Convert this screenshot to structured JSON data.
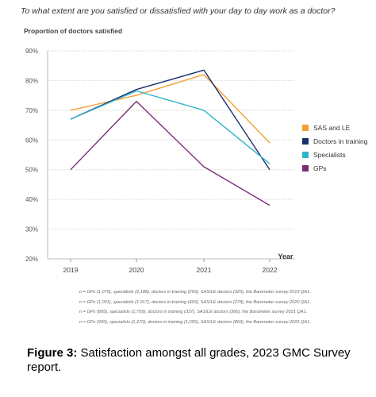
{
  "question": "To what extent are you satisfied or dissatisfied with your day to day work as a doctor?",
  "chart_data": {
    "type": "line",
    "ylabel": "Proportion of doctors satisfied",
    "xlabel": "Year",
    "x": [
      "2019",
      "2020",
      "2021",
      "2022"
    ],
    "ylim": [
      20,
      90
    ],
    "yticks": [
      "20%",
      "30%",
      "40%",
      "50%",
      "60%",
      "70%",
      "80%",
      "90%"
    ],
    "grid": true,
    "legend_position": "right",
    "series": [
      {
        "name": "SAS and LE",
        "color": "#f5a033",
        "values": [
          70,
          75,
          82,
          59
        ]
      },
      {
        "name": "Doctors in training",
        "color": "#1b2f6b",
        "values": [
          67,
          77,
          83.5,
          50
        ]
      },
      {
        "name": "Specialists",
        "color": "#2fb5c8",
        "values": [
          67,
          76.5,
          70,
          52
        ]
      },
      {
        "name": "GPs",
        "color": "#7b2d74",
        "values": [
          50,
          73,
          51,
          38
        ]
      }
    ]
  },
  "notes": [
    "n = GPs (1,079), specialists (2,188), doctors in training (269), SAS/LE doctors (325), the Barometer survey 2019 QA1.",
    "n = GPs (1,001), specialists (1,917), doctors in training (493), SAS/LE doctors (278), the Barometer survey 2020 QA1.",
    "n = GPs (895), specialists (1,759), doctors in training (337), SAS/LE doctors (366), the Barometer survey 2021 QA1.",
    "n = GPs (995), specialists (1,270), doctors in training (1,055), SAS/LE doctors (869), the Barometer survey 2022 QA1."
  ],
  "caption": {
    "label": "Figure 3:",
    "text": " Satisfaction amongst all grades, 2023 GMC Survey report."
  }
}
